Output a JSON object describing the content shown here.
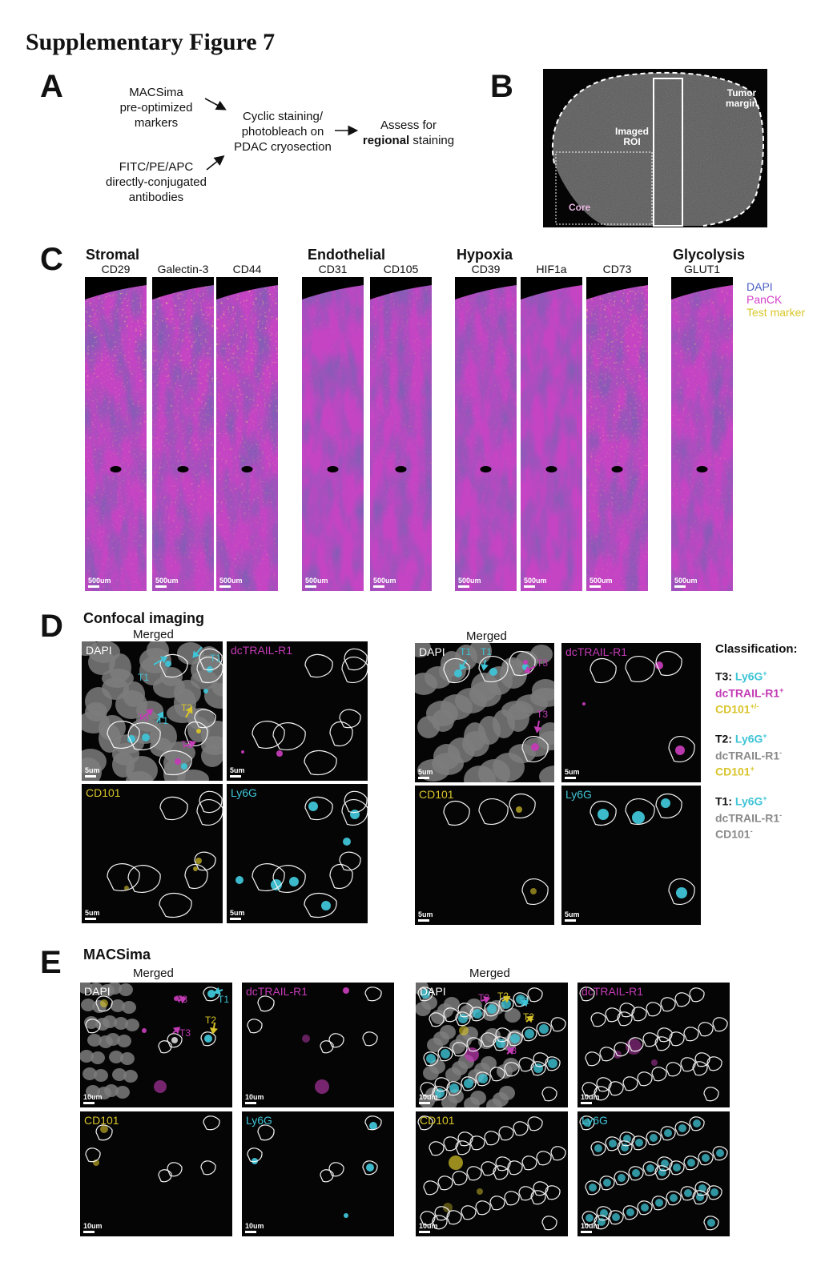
{
  "title": "Supplementary Figure 7",
  "panels": {
    "A": {
      "label": "A",
      "box1": [
        "MACSima",
        "pre-optimized",
        "markers"
      ],
      "box2": [
        "FITC/PE/APC",
        "directly-conjugated",
        "antibodies"
      ],
      "middle": [
        "Cyclic staining/",
        "photobleach on",
        "PDAC cryosection"
      ],
      "right_pre": "Assess for",
      "right_bold": "regional",
      "right_post": "staining"
    },
    "B": {
      "label": "B",
      "tumor_margin": [
        "Tumor",
        "margin"
      ],
      "imaged_roi": [
        "Imaged",
        "ROI"
      ],
      "core": "Core"
    },
    "C": {
      "label": "C",
      "groups": [
        "Stromal",
        "Endothelial",
        "Hypoxia",
        "Glycolysis"
      ],
      "markers": [
        "CD29",
        "Galectin-3",
        "CD44",
        "CD31",
        "CD105",
        "CD39",
        "HIF1a",
        "CD73",
        "GLUT1"
      ],
      "legend": [
        {
          "label": "DAPI",
          "color": "#4a5fc4"
        },
        {
          "label": "PanCK",
          "color": "#d43fc8"
        },
        {
          "label": "Test marker",
          "color": "#d9c72a"
        }
      ],
      "scale": "500um"
    },
    "D": {
      "label": "D",
      "heading": "Confocal imaging",
      "merged": "Merged",
      "channels": [
        "DAPI",
        "dcTRAIL-R1",
        "CD101",
        "Ly6G"
      ],
      "scale": "5um",
      "tags": [
        "T1",
        "T2",
        "T3"
      ],
      "classification_title": "Classification:",
      "classes": [
        {
          "t": "T3",
          "a": "Ly6G",
          "as": "+",
          "b": "dcTRAIL-R1",
          "bs": "+",
          "c": "CD101",
          "cs": "+/-"
        },
        {
          "t": "T2",
          "a": "Ly6G",
          "as": "+",
          "b": "dcTRAIL-R1",
          "bs": "-",
          "c": "CD101",
          "cs": "+"
        },
        {
          "t": "T1",
          "a": "Ly6G",
          "as": "+",
          "b": "dcTRAIL-R1",
          "bs": "-",
          "c": "CD101",
          "cs": "-"
        }
      ]
    },
    "E": {
      "label": "E",
      "heading": "MACSima",
      "merged": "Merged",
      "scale": "10um"
    }
  },
  "colors": {
    "cyan": "#3fc4d6",
    "magenta": "#c33bb5",
    "yellow": "#d8c42a",
    "grey": "#8a8a8a"
  }
}
